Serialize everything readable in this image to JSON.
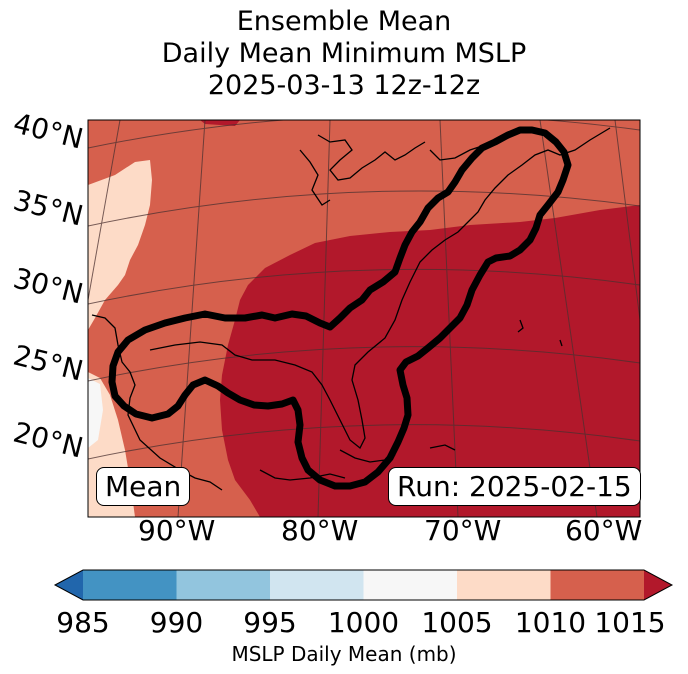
{
  "title": {
    "line1": "Ensemble Mean",
    "line2": "Daily Mean Minimum MSLP",
    "line3": "2025-03-13 12z-12z"
  },
  "map": {
    "lat_labels": [
      "40°N",
      "35°N",
      "30°N",
      "25°N",
      "20°N"
    ],
    "lon_labels": [
      "90°W",
      "80°W",
      "70°W",
      "60°W"
    ],
    "mean_label": "Mean",
    "run_label": "Run: 2025-02-15"
  },
  "colorbar": {
    "ticks": [
      "985",
      "990",
      "995",
      "1000",
      "1005",
      "1010",
      "1015"
    ],
    "label": "MSLP Daily Mean (mb)",
    "colors": {
      "below": "#2166ac",
      "985_990": "#4393c3",
      "990_995": "#92c5de",
      "995_1000": "#d1e5f0",
      "1000_1005": "#f7f7f7",
      "1005_1010": "#fddbc7",
      "1010_1015": "#d6604d",
      "above": "#b2182b"
    }
  }
}
